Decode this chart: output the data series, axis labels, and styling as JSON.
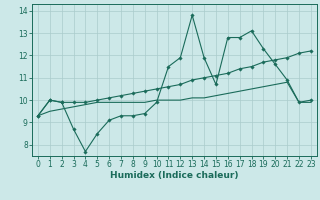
{
  "xlabel": "Humidex (Indice chaleur)",
  "xlim": [
    -0.5,
    23.5
  ],
  "ylim": [
    7.5,
    14.3
  ],
  "bg_color": "#cce8e8",
  "grid_color": "#aacccc",
  "line_color": "#1a6b5a",
  "line1": [
    9.3,
    10.0,
    9.9,
    8.7,
    7.7,
    8.5,
    9.1,
    9.3,
    9.3,
    9.4,
    9.9,
    11.5,
    11.9,
    13.8,
    11.9,
    10.7,
    12.8,
    12.8,
    13.1,
    12.3,
    11.6,
    10.9,
    9.9,
    10.0
  ],
  "line2": [
    9.3,
    10.0,
    9.9,
    9.9,
    9.9,
    10.0,
    10.1,
    10.2,
    10.3,
    10.4,
    10.5,
    10.6,
    10.7,
    10.9,
    11.0,
    11.1,
    11.2,
    11.4,
    11.5,
    11.7,
    11.8,
    11.9,
    12.1,
    12.2
  ],
  "line3": [
    9.3,
    9.5,
    9.6,
    9.7,
    9.8,
    9.9,
    9.9,
    9.9,
    9.9,
    9.9,
    10.0,
    10.0,
    10.0,
    10.1,
    10.1,
    10.2,
    10.3,
    10.4,
    10.5,
    10.6,
    10.7,
    10.8,
    9.9,
    9.9
  ],
  "x_ticks": [
    0,
    1,
    2,
    3,
    4,
    5,
    6,
    7,
    8,
    9,
    10,
    11,
    12,
    13,
    14,
    15,
    16,
    17,
    18,
    19,
    20,
    21,
    22,
    23
  ],
  "y_ticks": [
    8,
    9,
    10,
    11,
    12,
    13,
    14
  ],
  "tick_fontsize": 5.5,
  "xlabel_fontsize": 6.5
}
